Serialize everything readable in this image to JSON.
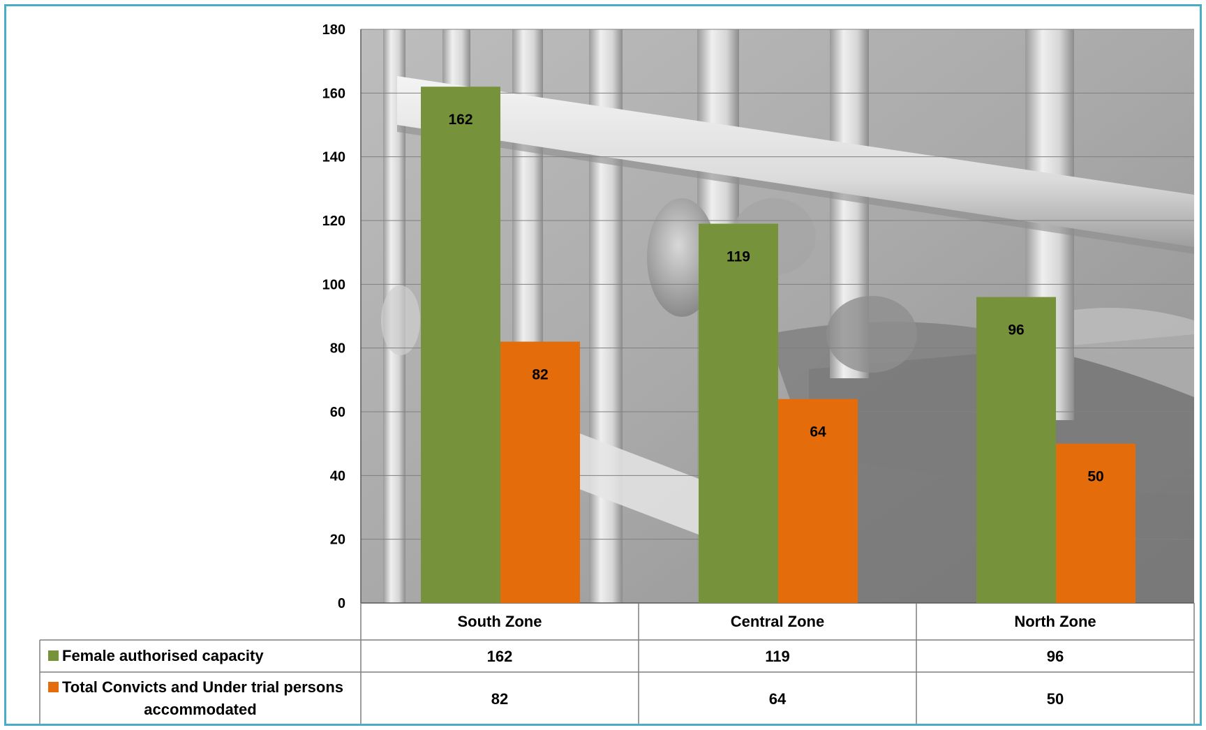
{
  "chart_data": {
    "type": "bar",
    "categories": [
      "South Zone",
      "Central Zone",
      "North Zone"
    ],
    "series": [
      {
        "name": "Female authorised capacity",
        "values": [
          162,
          119,
          96
        ],
        "color": "#76933c"
      },
      {
        "name": "Total Convicts and Under trial persons accommodated",
        "values": [
          82,
          64,
          50
        ],
        "color": "#e46c0a"
      }
    ],
    "yticks": [
      0,
      20,
      40,
      60,
      80,
      100,
      120,
      140,
      160,
      180
    ],
    "ylim": [
      0,
      180
    ],
    "grid": true,
    "legend": "data-table",
    "background": "grayscale photo of hands gripping prison bars",
    "border_color": "#4bacc6"
  }
}
